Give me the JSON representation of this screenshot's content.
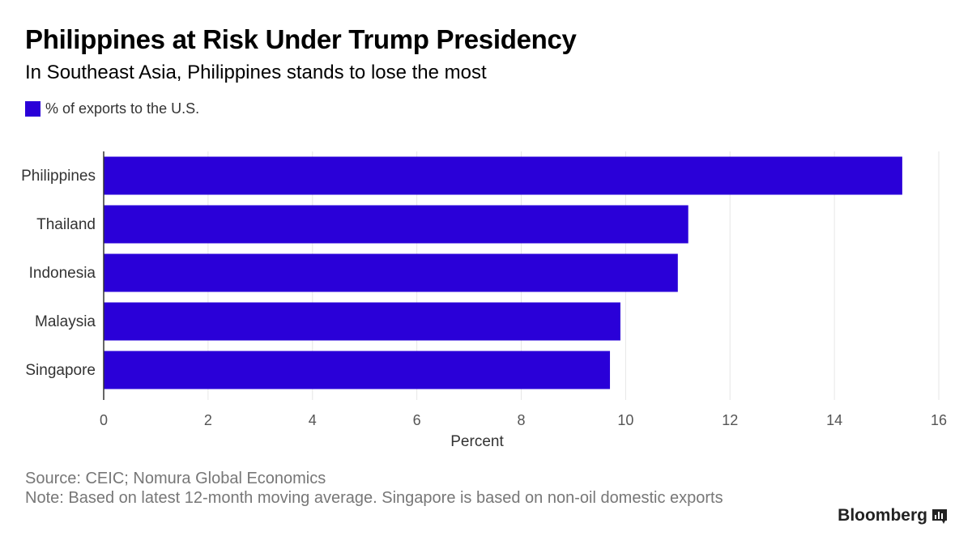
{
  "title": "Philippines at Risk Under Trump Presidency",
  "subtitle": "In Southeast Asia, Philippines stands to lose the most",
  "source": "Source: CEIC; Nomura Global Economics",
  "note": "Note: Based on latest 12-month moving average. Singapore is based on non-oil domestic exports",
  "brand": "Bloomberg",
  "colors": {
    "bar": "#2a00d8",
    "grid": "#e6e6e6",
    "axis": "#333333",
    "tick": "#555555"
  },
  "chart_data": {
    "type": "bar",
    "orientation": "horizontal",
    "title": "Philippines at Risk Under Trump Presidency",
    "subtitle": "In Southeast Asia, Philippines stands to lose the most",
    "categories": [
      "Philippines",
      "Thailand",
      "Indonesia",
      "Malaysia",
      "Singapore"
    ],
    "series": [
      {
        "name": "% of exports to the U.S.",
        "values": [
          15.3,
          11.2,
          11.0,
          9.9,
          9.7
        ]
      }
    ],
    "xlabel": "Percent",
    "ylabel": "",
    "xlim": [
      0,
      16
    ],
    "xticks": [
      0,
      2,
      4,
      6,
      8,
      10,
      12,
      14,
      16
    ],
    "grid": true,
    "legend": "top-left"
  }
}
